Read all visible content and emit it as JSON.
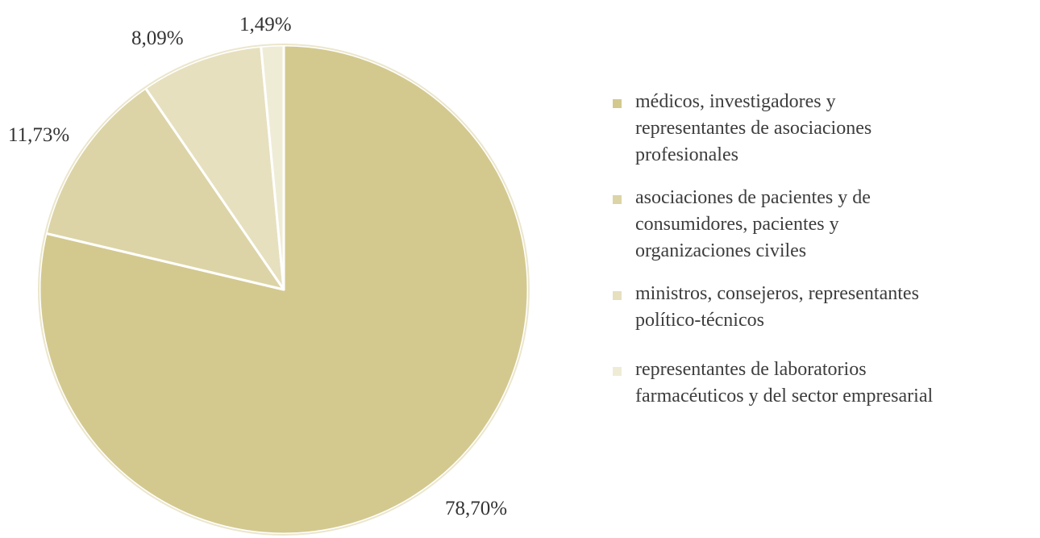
{
  "chart_data": {
    "type": "pie",
    "title": "",
    "start_angle_deg": 0,
    "direction": "clockwise",
    "legend_position": "right",
    "slices": [
      {
        "label": "médicos, investigadores y\nrepresentantes de asociaciones\nprofesionales",
        "value": 78.7,
        "value_label": "78,70%",
        "color": "#d3c98f"
      },
      {
        "label": "asociaciones de pacientes y de\nconsumidores, pacientes y\norganizaciones civiles",
        "value": 11.73,
        "value_label": "11,73%",
        "color": "#dcd4a6"
      },
      {
        "label": "ministros, consejeros, representantes\npolítico-técnicos",
        "value": 8.09,
        "value_label": "8,09%",
        "color": "#e6e0bf"
      },
      {
        "label": "representantes de laboratorios\nfarmacéuticos y del sector empresarial",
        "value": 1.49,
        "value_label": "1,49%",
        "color": "#efecd6"
      }
    ]
  }
}
